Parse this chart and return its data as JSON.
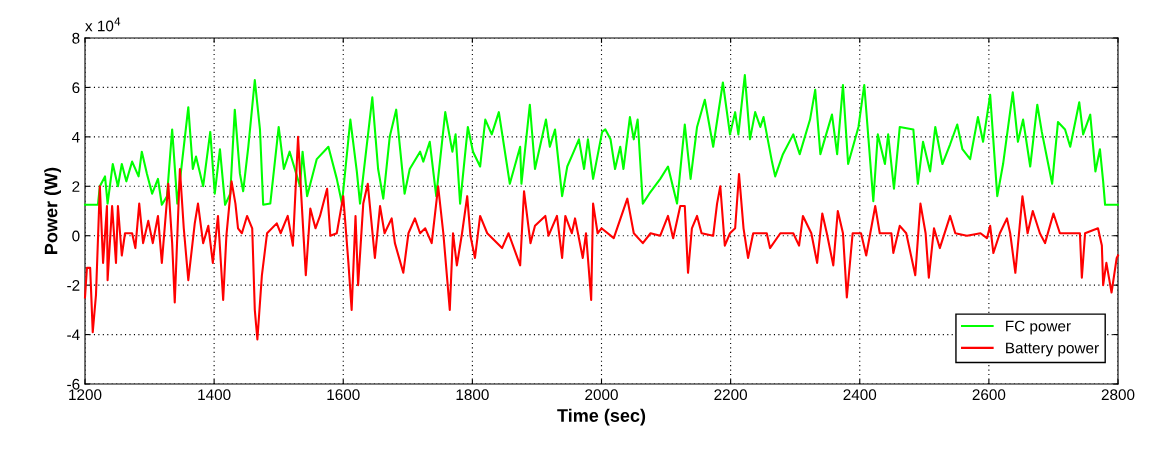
{
  "chart_data": {
    "type": "line",
    "xlabel": "Time (sec)",
    "ylabel": "Power (W)",
    "annotations": [
      "x 10$^{4}$"
    ],
    "xlim": [
      1200,
      2800
    ],
    "xticks": [
      1200,
      1400,
      1600,
      1800,
      2000,
      2200,
      2400,
      2600,
      2800
    ],
    "ylim": [
      -6,
      8
    ],
    "yticks": [
      -6,
      -4,
      -2,
      0,
      2,
      4,
      6,
      8
    ],
    "grid": true,
    "legend": "bottom right",
    "line_style": "solid",
    "marker": "none",
    "series": [
      {
        "name": "FC power",
        "color": "#00ff00",
        "x": [
          1200,
          1220,
          1223,
          1231,
          1235,
          1243,
          1251,
          1257,
          1264,
          1273,
          1283,
          1288,
          1296,
          1304,
          1313,
          1319,
          1327,
          1335,
          1343,
          1360,
          1367,
          1372,
          1383,
          1394,
          1401,
          1409,
          1417,
          1425,
          1432,
          1440,
          1445,
          1453,
          1463,
          1471,
          1476,
          1487,
          1500,
          1508,
          1517,
          1533,
          1537,
          1544,
          1559,
          1577,
          1590,
          1598,
          1611,
          1621,
          1626,
          1645,
          1654,
          1662,
          1672,
          1682,
          1695,
          1703,
          1719,
          1724,
          1734,
          1744,
          1758,
          1769,
          1774,
          1781,
          1793,
          1801,
          1812,
          1820,
          1830,
          1841,
          1858,
          1874,
          1876,
          1889,
          1897,
          1914,
          1920,
          1928,
          1939,
          1947,
          1957,
          1965,
          1973,
          1979,
          1987,
          2001,
          2006,
          2014,
          2021,
          2029,
          2034,
          2044,
          2050,
          2056,
          2064,
          2074,
          2091,
          2103,
          2117,
          2129,
          2138,
          2148,
          2160,
          2173,
          2188,
          2199,
          2207,
          2212,
          2222,
          2230,
          2238,
          2246,
          2251,
          2264,
          2269,
          2281,
          2297,
          2307,
          2323,
          2331,
          2339,
          2357,
          2365,
          2374,
          2382,
          2398,
          2407,
          2421,
          2428,
          2439,
          2444,
          2453,
          2462,
          2483,
          2490,
          2498,
          2509,
          2517,
          2528,
          2540,
          2551,
          2559,
          2571,
          2583,
          2591,
          2602,
          2613,
          2622,
          2637,
          2645,
          2653,
          2664,
          2675,
          2682,
          2698,
          2707,
          2718,
          2726,
          2740,
          2746,
          2757,
          2765,
          2772,
          2777,
          2780,
          2800
        ],
        "values": [
          1.25,
          1.25,
          2.0,
          2.4,
          1.3,
          2.9,
          2.0,
          2.9,
          2.2,
          3.0,
          2.4,
          3.4,
          2.5,
          1.7,
          2.3,
          1.25,
          1.6,
          4.3,
          1.3,
          5.2,
          2.7,
          3.2,
          2.0,
          4.2,
          1.7,
          3.5,
          1.25,
          1.7,
          5.1,
          2.5,
          1.8,
          3.6,
          6.3,
          4.3,
          1.25,
          1.3,
          4.4,
          2.7,
          3.4,
          2.0,
          3.4,
          1.6,
          3.1,
          3.6,
          2.3,
          1.3,
          4.7,
          2.6,
          1.3,
          5.6,
          2.7,
          1.5,
          4.0,
          5.1,
          1.7,
          2.7,
          3.4,
          3.0,
          3.8,
          1.6,
          5.0,
          3.4,
          4.1,
          1.3,
          4.4,
          3.4,
          2.8,
          4.7,
          4.1,
          5.0,
          2.1,
          3.6,
          2.1,
          5.3,
          2.7,
          4.7,
          3.6,
          4.3,
          1.6,
          2.8,
          3.4,
          3.9,
          2.7,
          3.9,
          2.3,
          4.2,
          4.3,
          3.9,
          2.7,
          3.6,
          2.7,
          4.8,
          3.9,
          4.7,
          1.3,
          1.7,
          2.3,
          2.8,
          1.3,
          4.5,
          2.3,
          4.4,
          5.5,
          3.6,
          6.2,
          4.1,
          5.0,
          4.1,
          6.5,
          3.9,
          5.0,
          4.4,
          4.8,
          3.0,
          2.4,
          3.3,
          4.1,
          3.3,
          4.7,
          5.9,
          3.3,
          4.9,
          3.3,
          6.1,
          2.9,
          4.4,
          6.1,
          1.4,
          4.1,
          2.9,
          4.1,
          1.9,
          4.4,
          4.3,
          2.1,
          3.8,
          2.6,
          4.4,
          2.9,
          3.7,
          4.5,
          3.5,
          3.1,
          4.8,
          3.8,
          5.7,
          1.6,
          2.9,
          5.8,
          3.8,
          4.7,
          2.8,
          5.3,
          4.2,
          2.1,
          4.6,
          4.3,
          3.6,
          5.4,
          4.1,
          4.9,
          2.6,
          3.5,
          2.2,
          1.25,
          1.25
        ]
      },
      {
        "name": "Battery power",
        "color": "#ff0000",
        "x": [
          1200,
          1203,
          1208,
          1212,
          1217,
          1223,
          1228,
          1234,
          1235,
          1242,
          1248,
          1251,
          1257,
          1262,
          1273,
          1278,
          1284,
          1290,
          1298,
          1305,
          1313,
          1319,
          1329,
          1335,
          1339,
          1347,
          1353,
          1360,
          1370,
          1375,
          1383,
          1391,
          1398,
          1406,
          1414,
          1419,
          1427,
          1433,
          1437,
          1443,
          1451,
          1459,
          1463,
          1467,
          1474,
          1482,
          1497,
          1503,
          1514,
          1522,
          1530,
          1535,
          1542,
          1549,
          1557,
          1564,
          1575,
          1580,
          1590,
          1600,
          1608,
          1613,
          1619,
          1623,
          1631,
          1638,
          1649,
          1657,
          1664,
          1675,
          1680,
          1693,
          1701,
          1711,
          1719,
          1727,
          1737,
          1747,
          1755,
          1765,
          1770,
          1776,
          1784,
          1792,
          1797,
          1804,
          1812,
          1823,
          1846,
          1856,
          1874,
          1880,
          1890,
          1897,
          1913,
          1918,
          1931,
          1939,
          1944,
          1954,
          1959,
          1971,
          1976,
          1984,
          1987,
          1994,
          2000,
          2019,
          2040,
          2050,
          2064,
          2076,
          2091,
          2103,
          2111,
          2122,
          2129,
          2134,
          2140,
          2148,
          2155,
          2173,
          2179,
          2184,
          2191,
          2199,
          2207,
          2213,
          2220,
          2227,
          2235,
          2256,
          2261,
          2277,
          2297,
          2306,
          2312,
          2325,
          2334,
          2342,
          2349,
          2359,
          2366,
          2374,
          2380,
          2389,
          2402,
          2410,
          2424,
          2431,
          2449,
          2452,
          2462,
          2472,
          2486,
          2494,
          2502,
          2507,
          2515,
          2524,
          2540,
          2548,
          2566,
          2587,
          2597,
          2602,
          2607,
          2617,
          2628,
          2633,
          2641,
          2652,
          2660,
          2668,
          2679,
          2687,
          2700,
          2710,
          2741,
          2744,
          2749,
          2769,
          2775,
          2777,
          2782,
          2790,
          2798,
          2800
        ],
        "values": [
          -2.5,
          -1.3,
          -1.3,
          -3.9,
          -2.4,
          2.0,
          -1.1,
          1.2,
          -1.8,
          1.2,
          -1.1,
          1.2,
          -0.8,
          0.1,
          0.1,
          -0.5,
          1.3,
          -0.3,
          0.6,
          -0.3,
          0.8,
          -1.1,
          2.1,
          -0.3,
          -2.7,
          2.7,
          0.3,
          -1.8,
          0.5,
          1.3,
          -0.3,
          0.4,
          -1.1,
          0.8,
          -2.6,
          0,
          2.2,
          1.3,
          0.3,
          0.1,
          0.8,
          0.3,
          -3.0,
          -4.2,
          -1.6,
          0.1,
          0.5,
          0.1,
          0.8,
          -0.4,
          4.0,
          1.6,
          -1.6,
          1.1,
          0.3,
          0.8,
          1.9,
          0,
          0.1,
          1.6,
          -1.1,
          -3.0,
          0.8,
          -2.0,
          1.3,
          2.1,
          -0.9,
          1.2,
          0.1,
          0.7,
          -0.3,
          -1.5,
          0.1,
          0.7,
          0.1,
          0.3,
          -0.3,
          2.0,
          0.1,
          -3.0,
          0.1,
          -1.2,
          0.1,
          1.6,
          0,
          -0.9,
          0.8,
          0.1,
          -0.5,
          0.1,
          -1.2,
          1.8,
          -0.3,
          0.4,
          0.8,
          0,
          0.8,
          -0.9,
          0.8,
          0.1,
          0.7,
          -0.9,
          0.1,
          -2.6,
          1.3,
          0.1,
          0.3,
          -0.1,
          1.5,
          0.1,
          -0.3,
          0.1,
          0,
          0.8,
          -0.1,
          1.2,
          1.2,
          -1.5,
          0.3,
          0.8,
          0.1,
          0,
          1.3,
          2.0,
          -0.4,
          0.1,
          0.3,
          2.5,
          0.3,
          -0.9,
          0.1,
          0.1,
          -0.5,
          0.1,
          0.1,
          -0.4,
          0.8,
          0.1,
          -1.1,
          0.9,
          0.1,
          -1.2,
          1.0,
          0.1,
          -2.5,
          0.1,
          0.1,
          -0.8,
          1.2,
          0.1,
          0.1,
          -0.7,
          0.4,
          0.1,
          -1.6,
          1.3,
          0.1,
          -1.7,
          0.3,
          -0.5,
          0.8,
          0.1,
          0,
          0.1,
          -0.1,
          0.4,
          -0.7,
          0.1,
          0.7,
          0.1,
          -1.5,
          1.6,
          0.1,
          1.0,
          0.1,
          -0.3,
          0.9,
          0.1,
          0.1,
          -1.7,
          0.1,
          0.3,
          -0.4,
          -2.0,
          -1.1,
          -2.3,
          -0.9,
          -0.8
        ]
      }
    ]
  }
}
